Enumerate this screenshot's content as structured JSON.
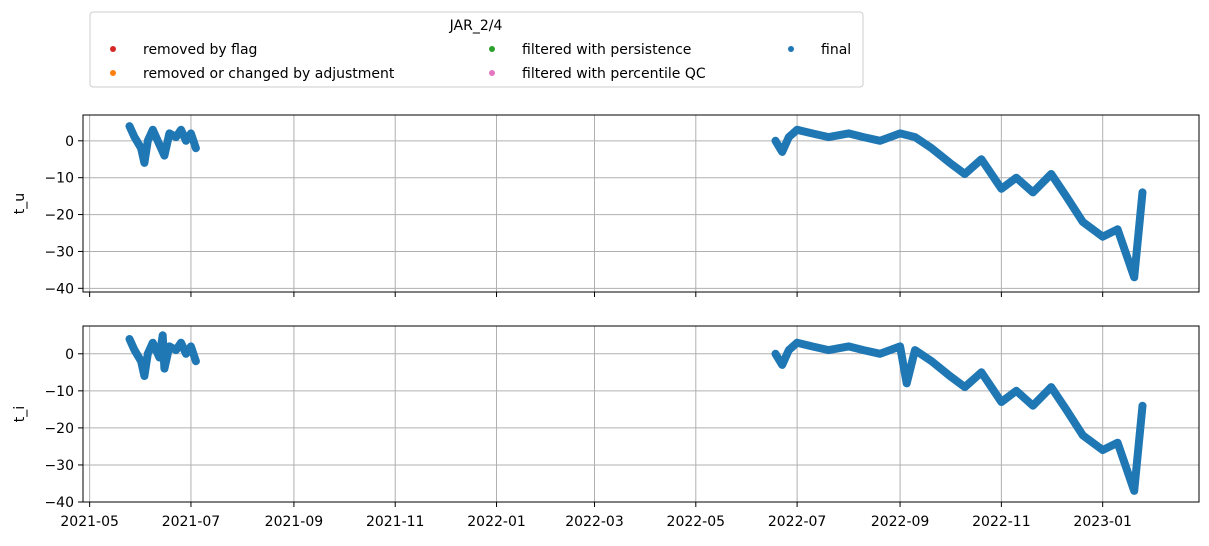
{
  "chart_data": {
    "type": "scatter",
    "legend": {
      "title": "JAR_2/4",
      "placement": "top",
      "entries": [
        {
          "label": "removed by flag",
          "color": "#d62728"
        },
        {
          "label": "filtered with persistence",
          "color": "#2ca02c"
        },
        {
          "label": "final",
          "color": "#1f77b4"
        },
        {
          "label": "removed or changed by adjustment",
          "color": "#ff7f0e"
        },
        {
          "label": "filtered with percentile QC",
          "color": "#e377c2"
        }
      ]
    },
    "x_ticks": [
      "2021-05",
      "2021-07",
      "2021-09",
      "2021-11",
      "2022-01",
      "2022-03",
      "2022-05",
      "2022-07",
      "2022-09",
      "2022-11",
      "2023-01"
    ],
    "xlim": [
      "2021-04-27",
      "2023-02-28"
    ],
    "grid": true,
    "panels": [
      {
        "ylabel": "t_u",
        "ylim": [
          -41,
          7
        ],
        "yticks": [
          0,
          -10,
          -20,
          -30,
          -40
        ],
        "ytick_labels": [
          "0",
          "−10",
          "−20",
          "−30",
          "−40"
        ],
        "series": [
          {
            "color": "#1f77b4",
            "points": [
              [
                "2021-05-25",
                4
              ],
              [
                "2021-05-28",
                1
              ],
              [
                "2021-06-01",
                -2
              ],
              [
                "2021-06-03",
                -6
              ],
              [
                "2021-06-05",
                0
              ],
              [
                "2021-06-08",
                3
              ],
              [
                "2021-06-12",
                -1
              ],
              [
                "2021-06-15",
                -4
              ],
              [
                "2021-06-18",
                2
              ],
              [
                "2021-06-22",
                1
              ],
              [
                "2021-06-25",
                3
              ],
              [
                "2021-06-28",
                0
              ],
              [
                "2021-07-01",
                2
              ],
              [
                "2021-07-04",
                -2
              ],
              [
                "2022-06-18",
                0
              ],
              [
                "2022-06-22",
                -3
              ],
              [
                "2022-06-26",
                1
              ],
              [
                "2022-07-01",
                3
              ],
              [
                "2022-07-10",
                2
              ],
              [
                "2022-07-20",
                1
              ],
              [
                "2022-08-01",
                2
              ],
              [
                "2022-08-10",
                1
              ],
              [
                "2022-08-20",
                0
              ],
              [
                "2022-09-01",
                2
              ],
              [
                "2022-09-10",
                1
              ],
              [
                "2022-09-20",
                -2
              ],
              [
                "2022-10-01",
                -6
              ],
              [
                "2022-10-10",
                -9
              ],
              [
                "2022-10-20",
                -5
              ],
              [
                "2022-11-01",
                -13
              ],
              [
                "2022-11-10",
                -10
              ],
              [
                "2022-11-20",
                -14
              ],
              [
                "2022-12-01",
                -9
              ],
              [
                "2022-12-10",
                -15
              ],
              [
                "2022-12-20",
                -22
              ],
              [
                "2023-01-01",
                -26
              ],
              [
                "2023-01-10",
                -24
              ],
              [
                "2023-01-20",
                -37
              ],
              [
                "2023-01-25",
                -14
              ]
            ]
          }
        ]
      },
      {
        "ylabel": "t_i",
        "ylim": [
          -40,
          7.5
        ],
        "yticks": [
          0,
          -10,
          -20,
          -30,
          -40
        ],
        "ytick_labels": [
          "0",
          "−10",
          "−20",
          "−30",
          "−40"
        ],
        "series": [
          {
            "color": "#1f77b4",
            "points": [
              [
                "2021-05-25",
                4
              ],
              [
                "2021-05-28",
                1
              ],
              [
                "2021-06-01",
                -2
              ],
              [
                "2021-06-03",
                -6
              ],
              [
                "2021-06-05",
                0
              ],
              [
                "2021-06-08",
                3
              ],
              [
                "2021-06-12",
                -1
              ],
              [
                "2021-06-14",
                5
              ],
              [
                "2021-06-15",
                -4
              ],
              [
                "2021-06-18",
                2
              ],
              [
                "2021-06-22",
                1
              ],
              [
                "2021-06-25",
                3
              ],
              [
                "2021-06-28",
                0
              ],
              [
                "2021-07-01",
                2
              ],
              [
                "2021-07-04",
                -2
              ],
              [
                "2022-06-18",
                0
              ],
              [
                "2022-06-22",
                -3
              ],
              [
                "2022-06-26",
                1
              ],
              [
                "2022-07-01",
                3
              ],
              [
                "2022-07-10",
                2
              ],
              [
                "2022-07-20",
                1
              ],
              [
                "2022-08-01",
                2
              ],
              [
                "2022-08-10",
                1
              ],
              [
                "2022-08-20",
                0
              ],
              [
                "2022-09-01",
                2
              ],
              [
                "2022-09-05",
                -8
              ],
              [
                "2022-09-10",
                1
              ],
              [
                "2022-09-20",
                -2
              ],
              [
                "2022-10-01",
                -6
              ],
              [
                "2022-10-10",
                -9
              ],
              [
                "2022-10-20",
                -5
              ],
              [
                "2022-11-01",
                -13
              ],
              [
                "2022-11-10",
                -10
              ],
              [
                "2022-11-20",
                -14
              ],
              [
                "2022-12-01",
                -9
              ],
              [
                "2022-12-10",
                -15
              ],
              [
                "2022-12-20",
                -22
              ],
              [
                "2023-01-01",
                -26
              ],
              [
                "2023-01-10",
                -24
              ],
              [
                "2023-01-20",
                -37
              ],
              [
                "2023-01-25",
                -14
              ]
            ]
          }
        ]
      }
    ]
  }
}
